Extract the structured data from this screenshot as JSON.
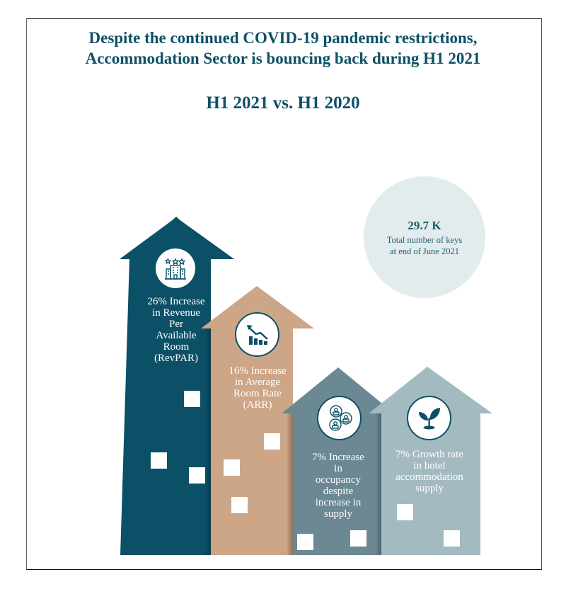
{
  "header": {
    "title_line1": "Despite the continued COVID-19 pandemic restrictions,",
    "title_line2": "Accommodation Sector is bouncing back during H1 2021",
    "subtitle": "H1 2021 vs. H1 2020"
  },
  "keys": {
    "value": "29.7 K",
    "label_line1": "Total number of keys",
    "label_line2": "at end of June 2021",
    "color": "#e2eced"
  },
  "houses": [
    {
      "icon": "hotel-building-icon",
      "color": "#0b5067",
      "lines": [
        "26% Increase",
        "in Revenue",
        "Per",
        "Available",
        "Room",
        "(RevPAR)"
      ]
    },
    {
      "icon": "bar-chart-arrow-icon",
      "color": "#cda587",
      "lines": [
        "16% Increase",
        "in Average",
        "Room Rate",
        "(ARR)"
      ]
    },
    {
      "icon": "people-network-icon",
      "color": "#6b8893",
      "lines": [
        "7% Increase",
        "in",
        "occupancy",
        "despite",
        "increase in",
        "supply"
      ]
    },
    {
      "icon": "plant-sprout-icon",
      "color": "#a3bac1",
      "lines": [
        "7% Growth rate",
        "in hotel",
        "accommodation",
        "supply"
      ]
    }
  ]
}
